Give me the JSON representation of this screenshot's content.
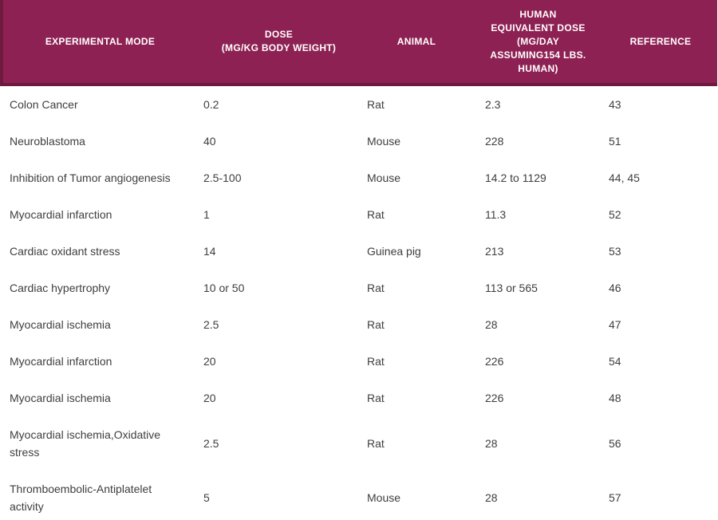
{
  "colors": {
    "header_bg": "#8e2153",
    "header_border": "#6e1a3f",
    "header_text": "#ffffff",
    "body_text": "#3e3e3e",
    "page_bg": "#ffffff"
  },
  "table": {
    "columns": [
      {
        "label": "EXPERIMENTAL MODE"
      },
      {
        "label": "DOSE\n(MG/KG BODY WEIGHT)"
      },
      {
        "label": "ANIMAL"
      },
      {
        "label": "HUMAN\nEQUIVALENT DOSE\n(MG/DAY\nASSUMING154 LBS.\nHUMAN)"
      },
      {
        "label": "REFERENCE"
      }
    ],
    "rows": [
      [
        "Colon Cancer",
        "0.2",
        "Rat",
        "2.3",
        "43"
      ],
      [
        "Neuroblastoma",
        "40",
        "Mouse",
        "228",
        "51"
      ],
      [
        "Inhibition of Tumor angiogenesis",
        "2.5-100",
        "Mouse",
        "14.2 to 1129",
        "44, 45"
      ],
      [
        "Myocardial infarction",
        "1",
        "Rat",
        "11.3",
        "52"
      ],
      [
        "Cardiac oxidant stress",
        "14",
        "Guinea pig",
        "213",
        "53"
      ],
      [
        "Cardiac hypertrophy",
        "10 or 50",
        "Rat",
        "113 or 565",
        "46"
      ],
      [
        "Myocardial ischemia",
        "2.5",
        "Rat",
        "28",
        "47"
      ],
      [
        "Myocardial infarction",
        "20",
        "Rat",
        "226",
        "54"
      ],
      [
        "Myocardial ischemia",
        "20",
        "Rat",
        "226",
        "48"
      ],
      [
        "Myocardial ischemia,Oxidative\nstress",
        "2.5",
        "Rat",
        "28",
        "56"
      ],
      [
        "Thromboembolic-Antiplatelet\nactivity",
        "5",
        "Mouse",
        "28",
        "57"
      ]
    ]
  }
}
